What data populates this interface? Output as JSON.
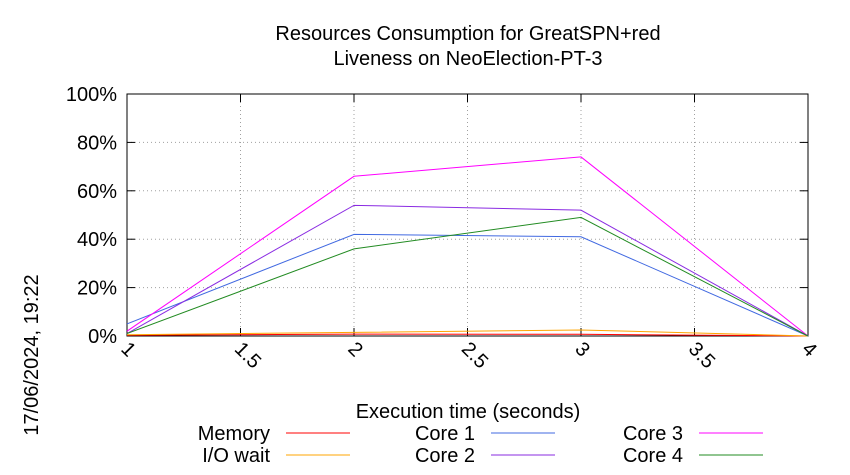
{
  "chart_data": {
    "type": "line",
    "title": [
      "Resources Consumption for GreatSPN+red",
      "Liveness on NeoElection-PT-3"
    ],
    "xlabel": "Execution time (seconds)",
    "ylabel": "",
    "side_label": "17/06/2024, 19:22",
    "xlim": [
      1,
      4
    ],
    "ylim": [
      0,
      100
    ],
    "x_ticks": [
      1,
      1.5,
      2,
      2.5,
      3,
      3.5,
      4
    ],
    "x_tick_labels": [
      "1",
      "1.5",
      "2",
      "2.5",
      "3",
      "3.5",
      "4"
    ],
    "y_ticks": [
      0,
      20,
      40,
      60,
      80,
      100
    ],
    "y_tick_labels": [
      "0%",
      "20%",
      "40%",
      "60%",
      "80%",
      "100%"
    ],
    "grid": true,
    "legend_position": "bottom",
    "series": [
      {
        "name": "Memory",
        "color": "#ff0000",
        "x": [
          1,
          2,
          3,
          4
        ],
        "y": [
          0.3,
          0.8,
          0.7,
          0
        ]
      },
      {
        "name": "I/O wait",
        "color": "#ffa500",
        "x": [
          1,
          2,
          3,
          4
        ],
        "y": [
          0.5,
          1.5,
          2.5,
          0
        ]
      },
      {
        "name": "Core 1",
        "color": "#4169e1",
        "x": [
          1,
          2,
          3,
          4
        ],
        "y": [
          5,
          42,
          41,
          0
        ]
      },
      {
        "name": "Core 2",
        "color": "#8a2be2",
        "x": [
          1,
          2,
          3,
          4
        ],
        "y": [
          1,
          54,
          52,
          0
        ]
      },
      {
        "name": "Core 3",
        "color": "#ff00ff",
        "x": [
          1,
          2,
          3,
          4
        ],
        "y": [
          2,
          66,
          74,
          0
        ]
      },
      {
        "name": "Core 4",
        "color": "#228b22",
        "x": [
          1,
          2,
          3,
          4
        ],
        "y": [
          1,
          36,
          49,
          0
        ]
      }
    ]
  }
}
